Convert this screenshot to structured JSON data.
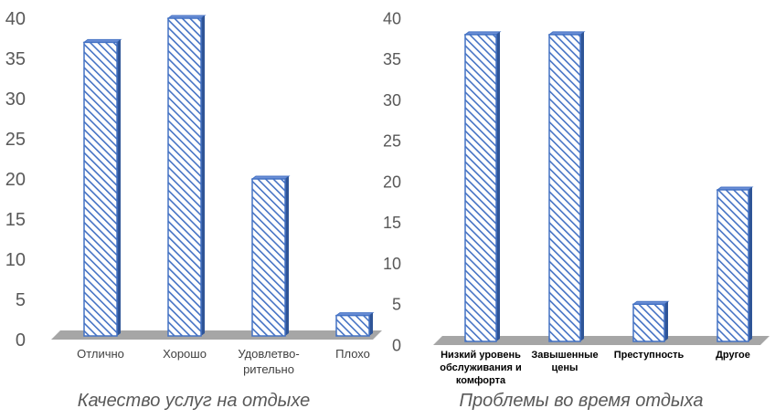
{
  "chart_data": [
    {
      "type": "bar",
      "categories": [
        "Отлично",
        "Хорошо",
        "Удовлетво-|рительно",
        "Плохо"
      ],
      "values": [
        37,
        40,
        20,
        3
      ],
      "ylim": [
        0,
        40
      ],
      "yticks": [
        0,
        5,
        10,
        15,
        20,
        25,
        30,
        35,
        40
      ],
      "title": "",
      "xlabel": "",
      "ylabel": "",
      "caption": "Качество услуг на отдыхе",
      "grid": false,
      "bar_color": "#4472c4",
      "fill_pattern": "diagonal-hatch"
    },
    {
      "type": "bar",
      "categories": [
        "Низкий уровень|обслуживания и|комфорта",
        "Завышенные|цены",
        "Преступность",
        "Другое"
      ],
      "values": [
        38,
        38,
        5,
        19
      ],
      "ylim": [
        0,
        40
      ],
      "yticks": [
        0,
        5,
        10,
        15,
        20,
        25,
        30,
        35,
        40
      ],
      "title": "",
      "xlabel": "",
      "ylabel": "",
      "caption": "Проблемы во время отдыха",
      "grid": false,
      "bar_color": "#4472c4",
      "fill_pattern": "diagonal-hatch"
    }
  ]
}
